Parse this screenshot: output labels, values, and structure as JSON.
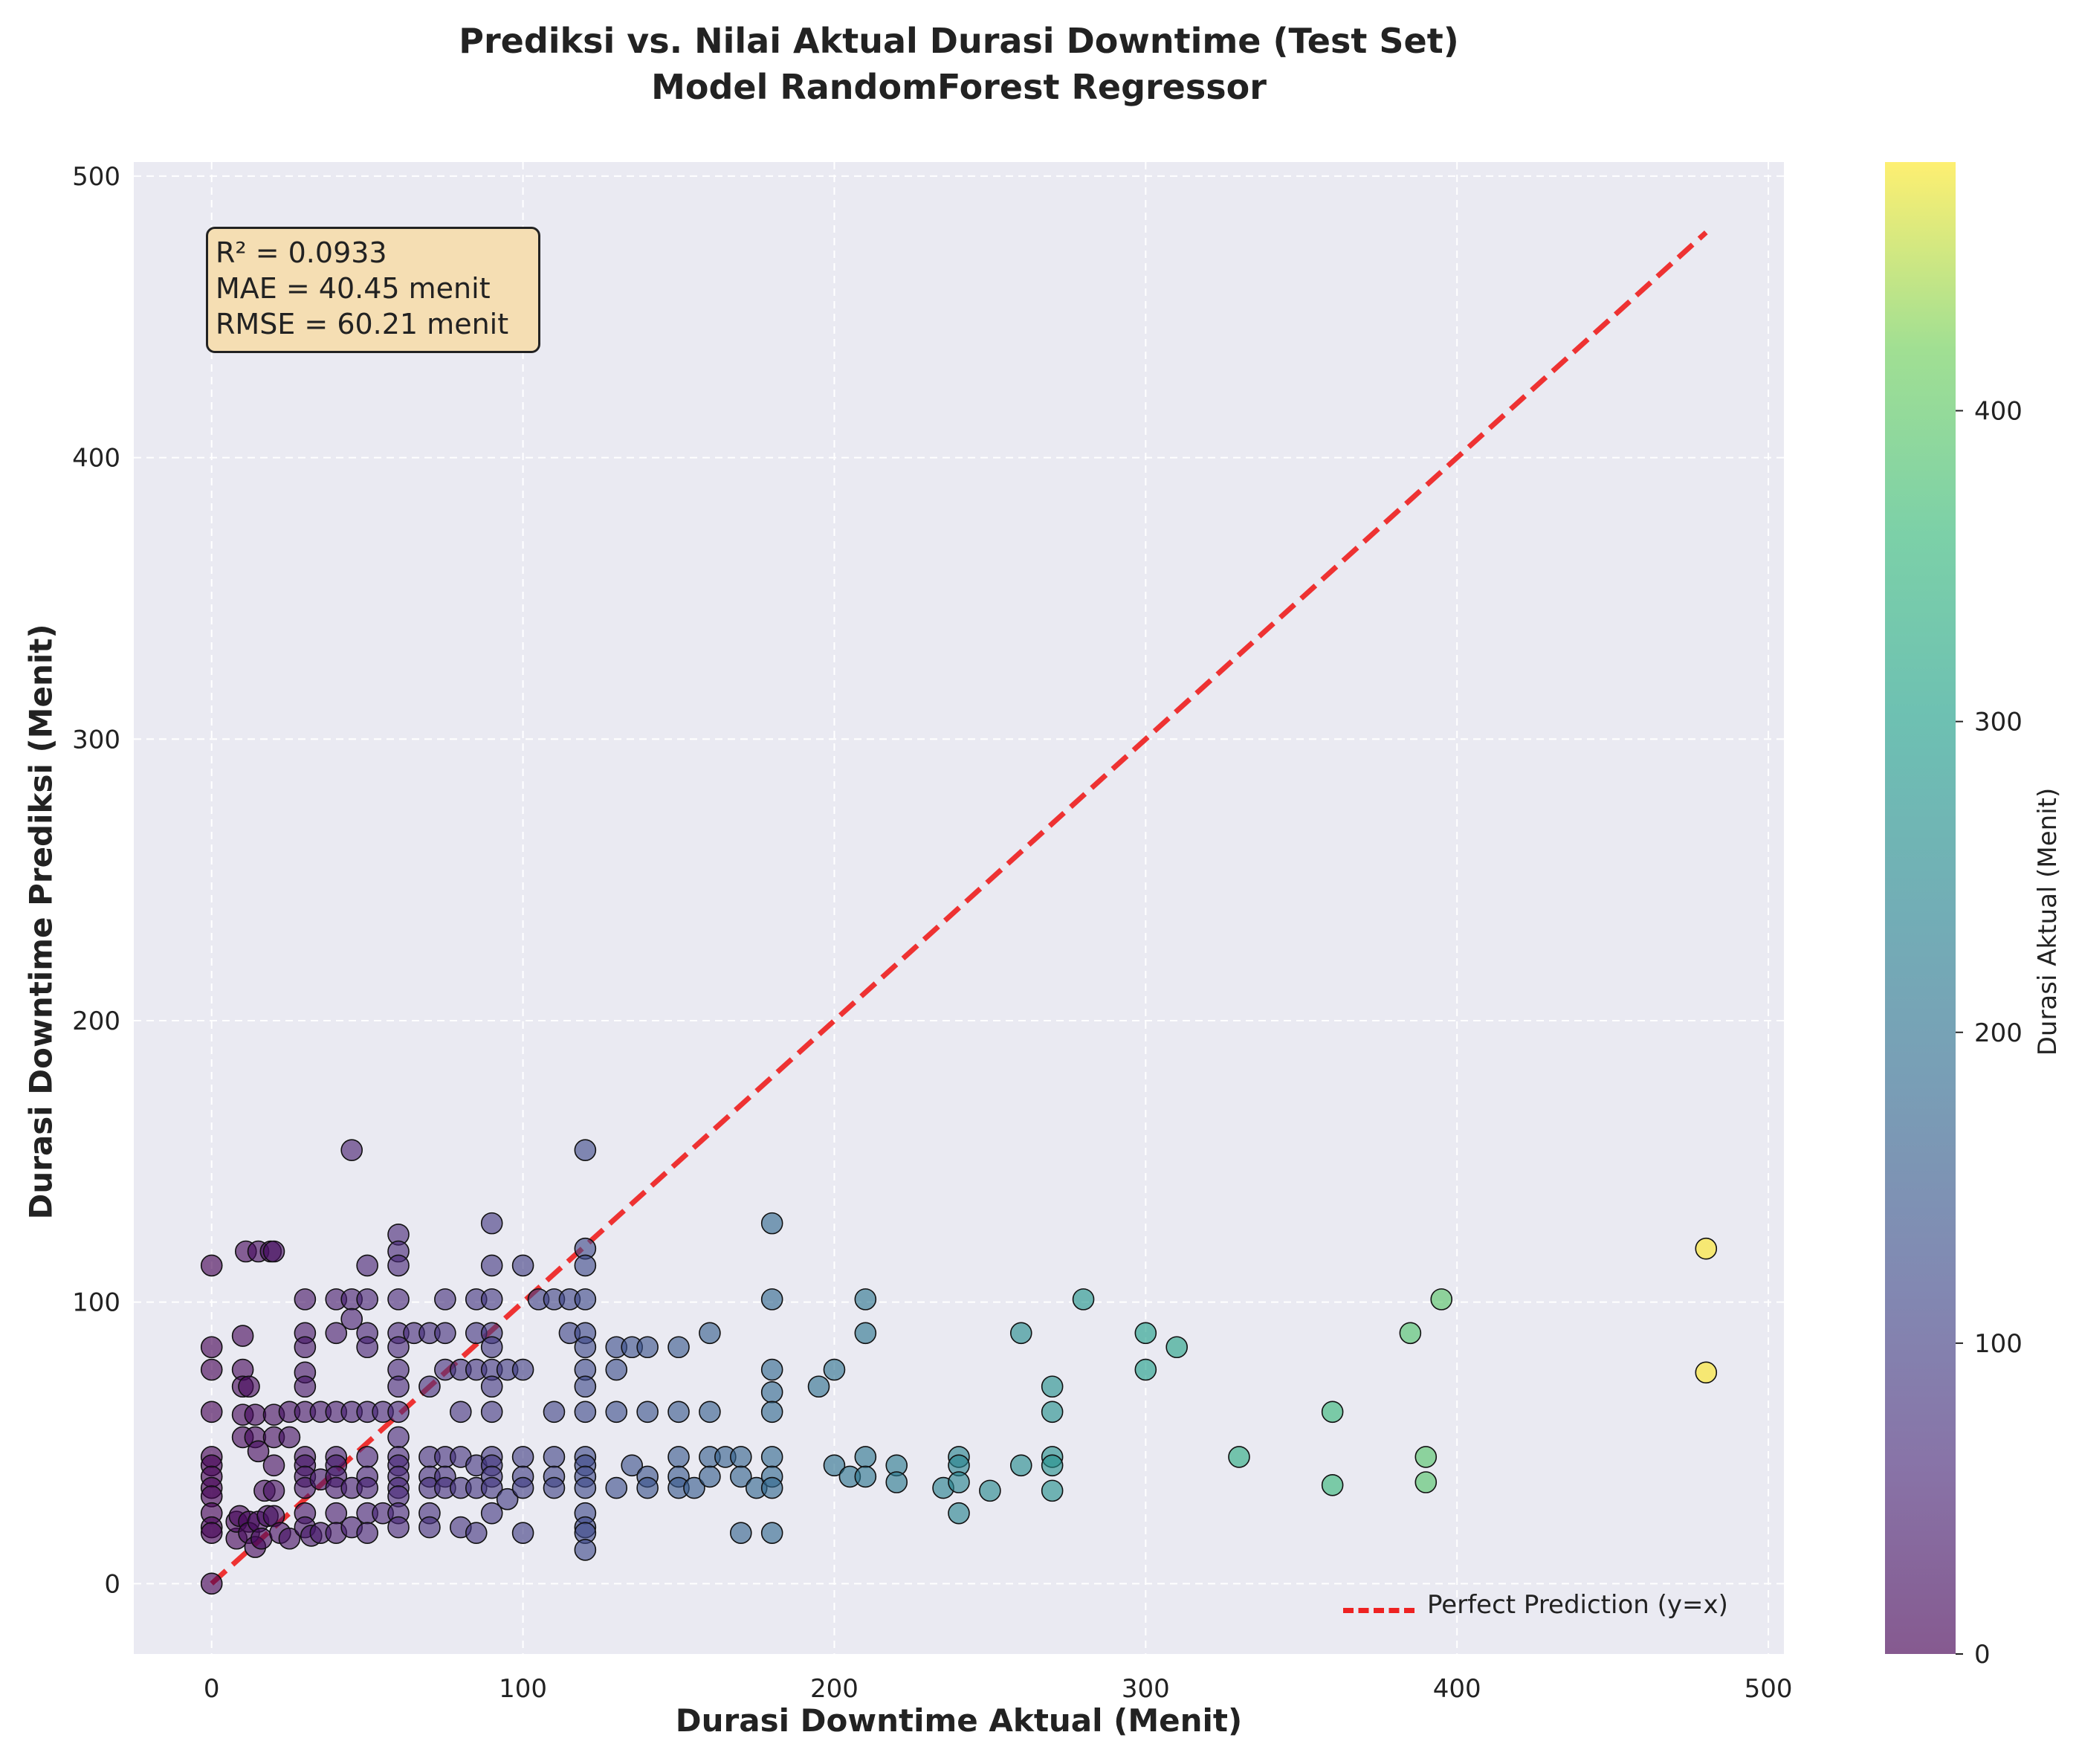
{
  "title_line1": "Prediksi vs. Nilai Aktual Durasi Downtime (Test Set)",
  "title_line2": "Model RandomForest Regressor",
  "stats_box": {
    "r2": "R² = 0.0933",
    "mae": "MAE = 40.45 menit",
    "rmse": "RMSE = 60.21 menit"
  },
  "legend_label": "Perfect Prediction (y=x)",
  "colorbar_label": "Durasi Aktual (Menit)",
  "colors": {
    "reference_line": "#ee2222",
    "plot_background": "#eaeaf2",
    "stats_box_background": "#f5deb3",
    "colormap": [
      "#440154",
      "#3b528b",
      "#21918c",
      "#5ec962",
      "#fde725"
    ]
  },
  "chart_data": {
    "type": "scatter",
    "xlabel": "Durasi Downtime Aktual (Menit)",
    "ylabel": "Durasi Downtime Prediksi (Menit)",
    "xlim": [
      -25,
      505
    ],
    "ylim": [
      -25,
      505
    ],
    "xticks": [
      0,
      100,
      200,
      300,
      400,
      500
    ],
    "yticks": [
      0,
      100,
      200,
      300,
      400,
      500
    ],
    "grid": true,
    "legend_position": "lower-right",
    "colorbar": {
      "min": 0,
      "max": 480,
      "ticks": [
        0,
        100,
        200,
        300,
        400
      ]
    },
    "reference_line": {
      "x": [
        0,
        480
      ],
      "y": [
        0,
        480
      ]
    },
    "points": [
      [
        0,
        0
      ],
      [
        0,
        113
      ],
      [
        0,
        84
      ],
      [
        0,
        76
      ],
      [
        0,
        61
      ],
      [
        0,
        45
      ],
      [
        0,
        42
      ],
      [
        0,
        38
      ],
      [
        0,
        34
      ],
      [
        0,
        31
      ],
      [
        0,
        25
      ],
      [
        0,
        20
      ],
      [
        0,
        18
      ],
      [
        8,
        16
      ],
      [
        8,
        22
      ],
      [
        9,
        24
      ],
      [
        10,
        88
      ],
      [
        10,
        76
      ],
      [
        10,
        70
      ],
      [
        10,
        60
      ],
      [
        10,
        52
      ],
      [
        11,
        118
      ],
      [
        12,
        70
      ],
      [
        12,
        22
      ],
      [
        12,
        18
      ],
      [
        14,
        60
      ],
      [
        14,
        52
      ],
      [
        14,
        13
      ],
      [
        15,
        118
      ],
      [
        15,
        47
      ],
      [
        15,
        22
      ],
      [
        16,
        16
      ],
      [
        17,
        33
      ],
      [
        18,
        24
      ],
      [
        19,
        118
      ],
      [
        20,
        118
      ],
      [
        20,
        60
      ],
      [
        20,
        52
      ],
      [
        20,
        42
      ],
      [
        20,
        33
      ],
      [
        20,
        24
      ],
      [
        22,
        18
      ],
      [
        25,
        61
      ],
      [
        25,
        52
      ],
      [
        25,
        16
      ],
      [
        30,
        101
      ],
      [
        30,
        89
      ],
      [
        30,
        84
      ],
      [
        30,
        75
      ],
      [
        30,
        70
      ],
      [
        30,
        61
      ],
      [
        30,
        45
      ],
      [
        30,
        42
      ],
      [
        30,
        38
      ],
      [
        30,
        34
      ],
      [
        30,
        25
      ],
      [
        30,
        20
      ],
      [
        32,
        17
      ],
      [
        35,
        61
      ],
      [
        35,
        37
      ],
      [
        35,
        18
      ],
      [
        40,
        101
      ],
      [
        40,
        89
      ],
      [
        40,
        61
      ],
      [
        40,
        45
      ],
      [
        40,
        42
      ],
      [
        40,
        38
      ],
      [
        40,
        34
      ],
      [
        40,
        25
      ],
      [
        40,
        18
      ],
      [
        45,
        154
      ],
      [
        45,
        101
      ],
      [
        45,
        94
      ],
      [
        45,
        61
      ],
      [
        45,
        34
      ],
      [
        45,
        20
      ],
      [
        50,
        113
      ],
      [
        50,
        101
      ],
      [
        50,
        89
      ],
      [
        50,
        84
      ],
      [
        50,
        61
      ],
      [
        50,
        45
      ],
      [
        50,
        38
      ],
      [
        50,
        34
      ],
      [
        50,
        25
      ],
      [
        50,
        18
      ],
      [
        55,
        61
      ],
      [
        55,
        25
      ],
      [
        60,
        124
      ],
      [
        60,
        118
      ],
      [
        60,
        113
      ],
      [
        60,
        101
      ],
      [
        60,
        89
      ],
      [
        60,
        84
      ],
      [
        60,
        76
      ],
      [
        60,
        70
      ],
      [
        60,
        61
      ],
      [
        60,
        52
      ],
      [
        60,
        45
      ],
      [
        60,
        42
      ],
      [
        60,
        38
      ],
      [
        60,
        34
      ],
      [
        60,
        31
      ],
      [
        60,
        25
      ],
      [
        60,
        20
      ],
      [
        65,
        89
      ],
      [
        70,
        89
      ],
      [
        70,
        70
      ],
      [
        70,
        45
      ],
      [
        70,
        38
      ],
      [
        70,
        34
      ],
      [
        70,
        25
      ],
      [
        70,
        20
      ],
      [
        75,
        101
      ],
      [
        75,
        89
      ],
      [
        75,
        76
      ],
      [
        75,
        45
      ],
      [
        75,
        38
      ],
      [
        75,
        34
      ],
      [
        80,
        76
      ],
      [
        80,
        61
      ],
      [
        80,
        45
      ],
      [
        80,
        34
      ],
      [
        80,
        20
      ],
      [
        85,
        101
      ],
      [
        85,
        89
      ],
      [
        85,
        76
      ],
      [
        85,
        42
      ],
      [
        85,
        34
      ],
      [
        85,
        18
      ],
      [
        90,
        128
      ],
      [
        90,
        113
      ],
      [
        90,
        101
      ],
      [
        90,
        89
      ],
      [
        90,
        84
      ],
      [
        90,
        76
      ],
      [
        90,
        70
      ],
      [
        90,
        61
      ],
      [
        90,
        45
      ],
      [
        90,
        42
      ],
      [
        90,
        38
      ],
      [
        90,
        34
      ],
      [
        90,
        25
      ],
      [
        95,
        76
      ],
      [
        95,
        30
      ],
      [
        100,
        113
      ],
      [
        100,
        76
      ],
      [
        100,
        45
      ],
      [
        100,
        38
      ],
      [
        100,
        34
      ],
      [
        100,
        18
      ],
      [
        105,
        101
      ],
      [
        110,
        101
      ],
      [
        110,
        61
      ],
      [
        110,
        45
      ],
      [
        110,
        38
      ],
      [
        110,
        34
      ],
      [
        115,
        101
      ],
      [
        115,
        89
      ],
      [
        120,
        154
      ],
      [
        120,
        119
      ],
      [
        120,
        113
      ],
      [
        120,
        101
      ],
      [
        120,
        89
      ],
      [
        120,
        84
      ],
      [
        120,
        76
      ],
      [
        120,
        70
      ],
      [
        120,
        61
      ],
      [
        120,
        45
      ],
      [
        120,
        42
      ],
      [
        120,
        38
      ],
      [
        120,
        34
      ],
      [
        120,
        25
      ],
      [
        120,
        20
      ],
      [
        120,
        18
      ],
      [
        120,
        12
      ],
      [
        130,
        84
      ],
      [
        130,
        76
      ],
      [
        130,
        61
      ],
      [
        130,
        34
      ],
      [
        135,
        84
      ],
      [
        135,
        42
      ],
      [
        140,
        84
      ],
      [
        140,
        61
      ],
      [
        140,
        38
      ],
      [
        140,
        34
      ],
      [
        150,
        84
      ],
      [
        150,
        61
      ],
      [
        150,
        45
      ],
      [
        150,
        38
      ],
      [
        150,
        34
      ],
      [
        155,
        34
      ],
      [
        160,
        89
      ],
      [
        160,
        61
      ],
      [
        160,
        45
      ],
      [
        160,
        38
      ],
      [
        165,
        45
      ],
      [
        170,
        45
      ],
      [
        170,
        38
      ],
      [
        170,
        18
      ],
      [
        175,
        34
      ],
      [
        180,
        128
      ],
      [
        180,
        101
      ],
      [
        180,
        76
      ],
      [
        180,
        68
      ],
      [
        180,
        61
      ],
      [
        180,
        45
      ],
      [
        180,
        38
      ],
      [
        180,
        34
      ],
      [
        180,
        18
      ],
      [
        195,
        70
      ],
      [
        200,
        76
      ],
      [
        200,
        42
      ],
      [
        205,
        38
      ],
      [
        210,
        101
      ],
      [
        210,
        89
      ],
      [
        210,
        45
      ],
      [
        210,
        38
      ],
      [
        220,
        42
      ],
      [
        220,
        36
      ],
      [
        235,
        34
      ],
      [
        240,
        45
      ],
      [
        240,
        42
      ],
      [
        240,
        36
      ],
      [
        240,
        25
      ],
      [
        250,
        33
      ],
      [
        260,
        89
      ],
      [
        260,
        42
      ],
      [
        270,
        70
      ],
      [
        270,
        61
      ],
      [
        270,
        45
      ],
      [
        270,
        42
      ],
      [
        270,
        33
      ],
      [
        280,
        101
      ],
      [
        300,
        89
      ],
      [
        300,
        76
      ],
      [
        310,
        84
      ],
      [
        330,
        45
      ],
      [
        360,
        61
      ],
      [
        360,
        35
      ],
      [
        385,
        89
      ],
      [
        390,
        45
      ],
      [
        390,
        36
      ],
      [
        395,
        101
      ],
      [
        480,
        119
      ],
      [
        480,
        75
      ]
    ]
  }
}
